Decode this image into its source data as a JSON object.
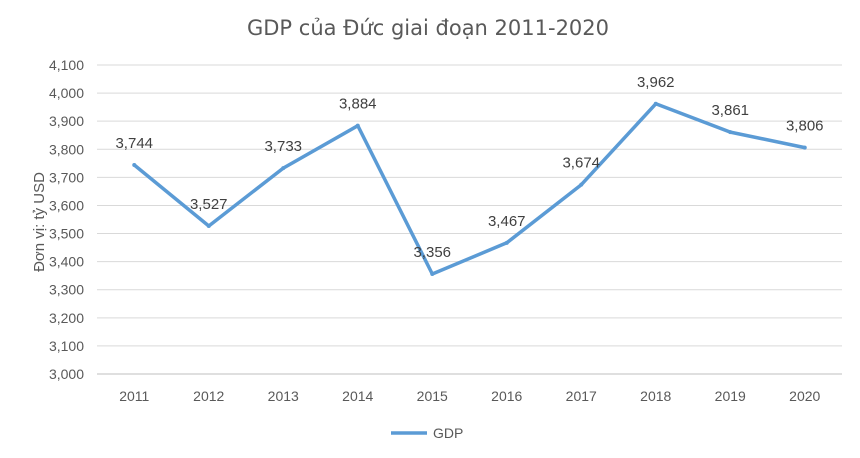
{
  "chart_data": {
    "type": "line",
    "title": "GDP của Đức giai đoạn 2011-2020",
    "ylabel": "Đơn vị:  tỷ USD",
    "xlabel": "",
    "categories": [
      "2011",
      "2012",
      "2013",
      "2014",
      "2015",
      "2016",
      "2017",
      "2018",
      "2019",
      "2020"
    ],
    "series": [
      {
        "name": "GDP",
        "values": [
          3744,
          3527,
          3733,
          3884,
          3356,
          3467,
          3674,
          3962,
          3861,
          3806
        ],
        "labels": [
          "3,744",
          "3,527",
          "3,733",
          "3,884",
          "3,356",
          "3,467",
          "3,674",
          "3,962",
          "3,861",
          "3,806"
        ],
        "color": "#5b9bd5"
      }
    ],
    "ylim": [
      3000,
      4100
    ],
    "yticks": [
      "3,000",
      "3,100",
      "3,200",
      "3,300",
      "3,400",
      "3,500",
      "3,600",
      "3,700",
      "3,800",
      "3,900",
      "4,000",
      "4,100"
    ],
    "ytick_values": [
      3000,
      3100,
      3200,
      3300,
      3400,
      3500,
      3600,
      3700,
      3800,
      3900,
      4000,
      4100
    ],
    "grid": true,
    "legend": "bottom"
  }
}
